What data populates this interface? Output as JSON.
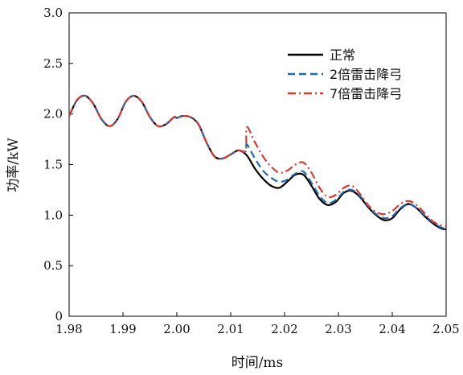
{
  "chart_data": {
    "type": "line",
    "title": "",
    "xlabel": "时间/ms",
    "ylabel": "功率/kW",
    "xlim": [
      1.98,
      2.05
    ],
    "ylim": [
      0,
      3.0
    ],
    "xticks": [
      "1.98",
      "1.99",
      "2.00",
      "2.01",
      "2.02",
      "2.03",
      "2.04",
      "2.05"
    ],
    "yticks": [
      "0",
      "0.5",
      "1.0",
      "1.5",
      "2.0",
      "2.5",
      "3.0"
    ],
    "grid": false,
    "legend_position": "top-right",
    "series": [
      {
        "name": "正常",
        "color": "#000000",
        "style": "solid",
        "x": [
          1.98,
          1.9815,
          1.983,
          1.9845,
          1.986,
          1.9875,
          1.989,
          1.9905,
          1.992,
          1.9935,
          1.995,
          1.9965,
          1.998,
          1.9995,
          2.0,
          2.001,
          2.0025,
          2.004,
          2.0055,
          2.007,
          2.0085,
          2.01,
          2.0115,
          2.013,
          2.0145,
          2.016,
          2.0175,
          2.019,
          2.0205,
          2.022,
          2.0235,
          2.025,
          2.0265,
          2.028,
          2.0295,
          2.031,
          2.0325,
          2.034,
          2.0355,
          2.037,
          2.0385,
          2.04,
          2.0415,
          2.043,
          2.0445,
          2.046,
          2.0475,
          2.049,
          2.05
        ],
        "y": [
          1.98,
          2.14,
          2.18,
          2.1,
          1.95,
          1.88,
          1.95,
          2.12,
          2.18,
          2.12,
          1.97,
          1.88,
          1.9,
          1.97,
          1.96,
          1.98,
          1.97,
          1.9,
          1.72,
          1.58,
          1.56,
          1.6,
          1.64,
          1.59,
          1.46,
          1.36,
          1.29,
          1.27,
          1.33,
          1.4,
          1.4,
          1.29,
          1.16,
          1.1,
          1.13,
          1.22,
          1.24,
          1.18,
          1.08,
          1.0,
          0.95,
          0.97,
          1.06,
          1.11,
          1.07,
          0.99,
          0.92,
          0.87,
          0.86
        ]
      },
      {
        "name": "2倍雷击降弓",
        "color": "#1f6ab0",
        "style": "dashed",
        "x": [
          1.98,
          1.9815,
          1.983,
          1.9845,
          1.986,
          1.9875,
          1.989,
          1.9905,
          1.992,
          1.9935,
          1.995,
          1.9965,
          1.998,
          1.9995,
          2.0,
          2.001,
          2.0025,
          2.004,
          2.0055,
          2.007,
          2.0085,
          2.01,
          2.0115,
          2.0128,
          2.013,
          2.0145,
          2.016,
          2.0175,
          2.019,
          2.0205,
          2.022,
          2.0235,
          2.025,
          2.0265,
          2.028,
          2.0295,
          2.031,
          2.0325,
          2.034,
          2.0355,
          2.037,
          2.0385,
          2.04,
          2.0415,
          2.043,
          2.0445,
          2.046,
          2.0475,
          2.049,
          2.05
        ],
        "y": [
          1.98,
          2.14,
          2.18,
          2.1,
          1.95,
          1.88,
          1.95,
          2.12,
          2.18,
          2.12,
          1.97,
          1.88,
          1.9,
          1.97,
          1.96,
          1.98,
          1.97,
          1.9,
          1.72,
          1.58,
          1.56,
          1.6,
          1.64,
          1.63,
          1.7,
          1.56,
          1.44,
          1.37,
          1.33,
          1.35,
          1.41,
          1.43,
          1.32,
          1.19,
          1.12,
          1.15,
          1.23,
          1.25,
          1.19,
          1.09,
          1.01,
          0.97,
          0.99,
          1.07,
          1.11,
          1.07,
          1.0,
          0.93,
          0.88,
          0.87
        ]
      },
      {
        "name": "7倍雷击降弓",
        "color": "#d93a2f",
        "style": "dashdot",
        "x": [
          1.98,
          1.9815,
          1.983,
          1.9845,
          1.986,
          1.9875,
          1.989,
          1.9905,
          1.992,
          1.9935,
          1.995,
          1.9965,
          1.998,
          1.9995,
          2.0,
          2.001,
          2.0025,
          2.004,
          2.0055,
          2.007,
          2.0085,
          2.01,
          2.0115,
          2.0128,
          2.013,
          2.0145,
          2.016,
          2.0175,
          2.019,
          2.0205,
          2.022,
          2.0235,
          2.025,
          2.0265,
          2.028,
          2.0295,
          2.031,
          2.0325,
          2.034,
          2.0355,
          2.037,
          2.0385,
          2.04,
          2.0415,
          2.043,
          2.0445,
          2.046,
          2.0475,
          2.049,
          2.05
        ],
        "y": [
          1.98,
          2.14,
          2.18,
          2.1,
          1.95,
          1.88,
          1.95,
          2.12,
          2.18,
          2.12,
          1.97,
          1.88,
          1.9,
          1.97,
          1.96,
          1.98,
          1.97,
          1.9,
          1.72,
          1.58,
          1.56,
          1.6,
          1.64,
          1.64,
          1.87,
          1.72,
          1.58,
          1.48,
          1.42,
          1.44,
          1.5,
          1.52,
          1.42,
          1.27,
          1.18,
          1.2,
          1.27,
          1.29,
          1.21,
          1.1,
          1.03,
          1.01,
          1.04,
          1.11,
          1.14,
          1.1,
          1.02,
          0.94,
          0.9,
          0.89
        ]
      }
    ]
  }
}
